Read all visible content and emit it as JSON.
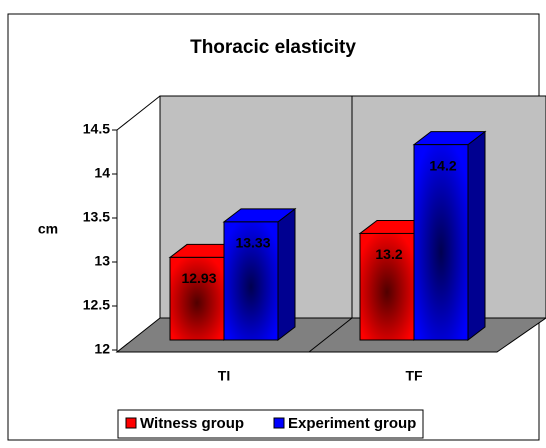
{
  "chart_data": {
    "type": "bar3d",
    "title": "Thoracic elasticity",
    "ylabel": "cm",
    "categories": [
      "TI",
      "TF"
    ],
    "series": [
      {
        "name": "Witness group",
        "color": "#ff0000",
        "values": [
          12.93,
          13.2
        ]
      },
      {
        "name": "Experiment group",
        "color": "#0000ff",
        "values": [
          13.33,
          14.2
        ]
      }
    ],
    "ylim": [
      12,
      14.5
    ],
    "yticks": [
      12,
      12.5,
      13,
      13.5,
      14,
      14.5
    ],
    "grid": false,
    "legend": "bottom"
  }
}
